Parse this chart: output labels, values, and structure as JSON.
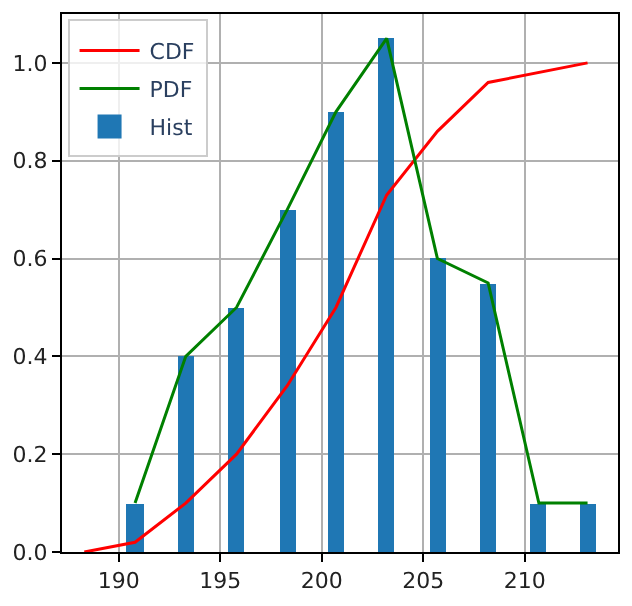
{
  "chart_data": {
    "type": "line",
    "xlim": [
      187.2,
      214.6
    ],
    "ylim": [
      0,
      1.1
    ],
    "xticks": [
      190,
      195,
      200,
      205,
      210
    ],
    "yticks": [
      {
        "value": 0,
        "label": "0.0"
      },
      {
        "value": 0.2,
        "label": "0.2"
      },
      {
        "value": 0.4,
        "label": "0.4"
      },
      {
        "value": 0.6,
        "label": "0.6"
      },
      {
        "value": 0.8,
        "label": "0.8"
      },
      {
        "value": 1.0,
        "label": "1.0"
      }
    ],
    "grid": true,
    "legend": "top left",
    "series": [
      {
        "name": "CDF",
        "color": "#ff0000",
        "x": [
          188.3,
          190.8,
          193.3,
          195.8,
          198.3,
          200.7,
          203.2,
          205.7,
          208.2,
          213.1
        ],
        "values": [
          0.0,
          0.02,
          0.1,
          0.2,
          0.34,
          0.5,
          0.73,
          0.86,
          0.96,
          1.0
        ]
      },
      {
        "name": "PDF",
        "color": "#008000",
        "x": [
          190.8,
          193.3,
          195.8,
          198.3,
          200.7,
          203.2,
          205.7,
          208.2,
          210.7,
          213.1
        ],
        "values": [
          0.1,
          0.4,
          0.5,
          0.7,
          0.9,
          1.05,
          0.6,
          0.55,
          0.1,
          0.1
        ]
      },
      {
        "name": "Hist",
        "type": "bar",
        "color": "#1f77b4",
        "x": [
          190.8,
          193.3,
          195.8,
          198.3,
          200.7,
          203.2,
          205.7,
          208.2,
          210.7,
          213.1
        ],
        "values": [
          0.1,
          0.4,
          0.5,
          0.7,
          0.9,
          1.05,
          0.6,
          0.55,
          0.1,
          0.1
        ]
      }
    ]
  }
}
